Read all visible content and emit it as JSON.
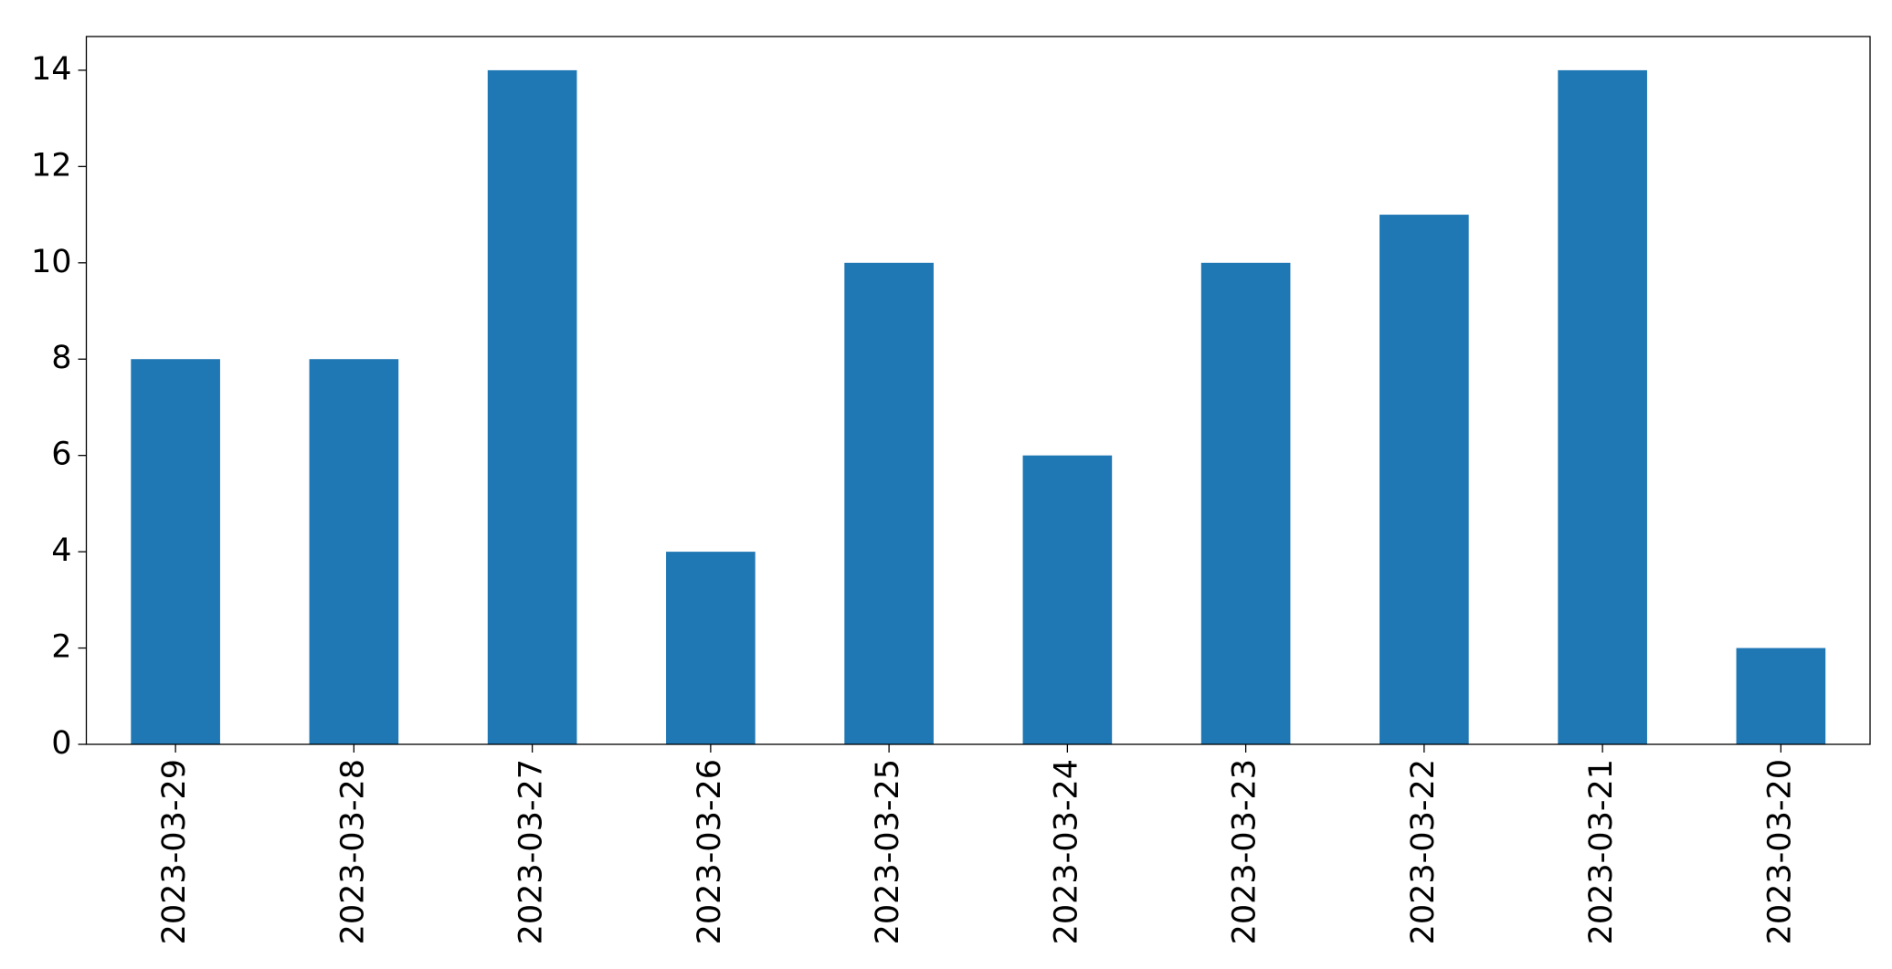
{
  "chart_data": {
    "type": "bar",
    "categories": [
      "2023-03-29",
      "2023-03-28",
      "2023-03-27",
      "2023-03-26",
      "2023-03-25",
      "2023-03-24",
      "2023-03-23",
      "2023-03-22",
      "2023-03-21",
      "2023-03-20"
    ],
    "values": [
      8,
      8,
      14,
      4,
      10,
      6,
      10,
      11,
      14,
      2
    ],
    "color": "#1f77b4",
    "ylim": [
      0,
      14.7
    ],
    "yticks": [
      0,
      2,
      4,
      6,
      8,
      10,
      12,
      14
    ],
    "grid": false
  }
}
